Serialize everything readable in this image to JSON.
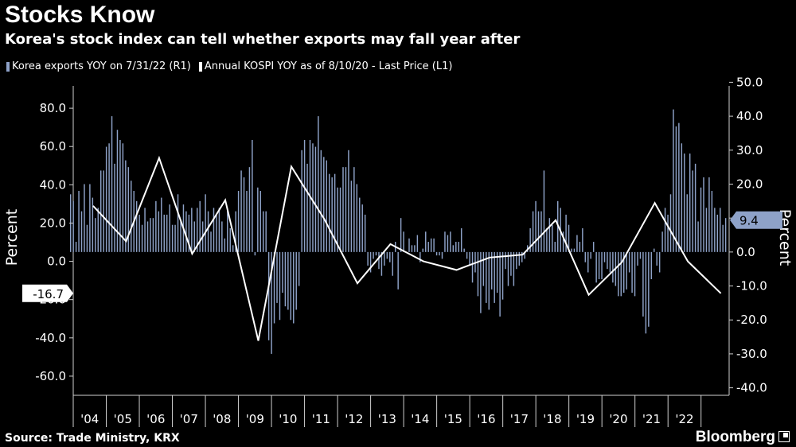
{
  "header": {
    "title": "Stocks Know",
    "subtitle": "Korea's stock index can tell whether exports may fall year after"
  },
  "legend": [
    {
      "label": "Korea exports YOY on 7/31/22 (R1)",
      "color": "#8ea2c8"
    },
    {
      "label": "Annual KOSPI YOY as of 8/10/20 - Last Price (L1)",
      "color": "#ffffff"
    }
  ],
  "footer": {
    "source": "Source: Trade Ministry, KRX",
    "brand": "Bloomberg"
  },
  "chart_data": {
    "type": "bar+line",
    "colors": {
      "bars": "#8ea2c8",
      "line": "#ffffff",
      "background": "#000000",
      "axis": "#cfcfcf"
    },
    "left_axis": {
      "label": "Percent",
      "range": [
        -70,
        95
      ],
      "ticks": [
        -60,
        -40,
        -20,
        0,
        20,
        40,
        60,
        80
      ],
      "tick_labels": [
        "-60.0",
        "-40.0",
        "-20.0",
        "0.0",
        "20.0",
        "40.0",
        "60.0",
        "80.0"
      ]
    },
    "right_axis": {
      "label": "Percent",
      "range": [
        -42.2,
        50.8
      ],
      "ticks": [
        -40,
        -30,
        -20,
        -10,
        0,
        10,
        20,
        30,
        40,
        50
      ],
      "tick_labels": [
        "-40.0",
        "-30.0",
        "-20.0",
        "-10.0",
        "0.0",
        "10.0",
        "20.0",
        "30.0",
        "40.0",
        "50.0"
      ]
    },
    "x_axis": {
      "categories": [
        "'04",
        "'05",
        "'06",
        "'07",
        "'08",
        "'09",
        "'10",
        "'11",
        "'12",
        "'13",
        "'14",
        "'15",
        "'16",
        "'17",
        "'18",
        "'19",
        "'20",
        "'21",
        "'22"
      ]
    },
    "value_labels": {
      "left_last": "-16.7",
      "right_last": "9.4"
    },
    "kospi_line": {
      "name": "Annual KOSPI YOY as of 8/10/20 - Last Price (L1)",
      "x": [
        2003.6,
        2004.6,
        2005.6,
        2006.6,
        2007.6,
        2008.6,
        2009.6,
        2010.6,
        2011.6,
        2012.6,
        2013.6,
        2014.6,
        2015.6,
        2016.6,
        2017.6,
        2018.6,
        2019.6,
        2020.6,
        2021.6,
        2022.6
      ],
      "y": [
        29,
        10.5,
        54,
        4,
        32,
        -41.5,
        49.5,
        22,
        -11.5,
        9,
        0,
        -4.5,
        2,
        3.5,
        21.5,
        -17.5,
        -0.5,
        30.5,
        0,
        -16.7
      ]
    },
    "exports_bars": {
      "name": "Korea exports YOY on 7/31/22 (R1)",
      "x_start": 2002.92,
      "step": 0.0833,
      "values": [
        17,
        15,
        3,
        18,
        12,
        20,
        8,
        20,
        16,
        10,
        13,
        24,
        24,
        31,
        32,
        40,
        26,
        36,
        33,
        32,
        27,
        25,
        21,
        18,
        15,
        11,
        8,
        13,
        9,
        10,
        10,
        15,
        12,
        16,
        11,
        11,
        14,
        8,
        8,
        17,
        9,
        14,
        12,
        11,
        13,
        9,
        13,
        15,
        9,
        17,
        12,
        6,
        13,
        11,
        13,
        9,
        4,
        13,
        7,
        2,
        12,
        18,
        24,
        22,
        18,
        25,
        33,
        -1,
        19,
        18,
        12,
        12,
        -26,
        -30,
        -21,
        -15,
        -20,
        -12,
        -16,
        -17,
        -20,
        -21,
        -17,
        -10,
        30,
        33,
        26,
        33,
        32,
        31,
        40,
        30,
        28,
        27,
        23,
        22,
        23,
        19,
        19,
        25,
        25,
        30,
        21,
        25,
        20,
        16,
        14,
        11,
        -4,
        -6,
        -2,
        -1,
        -5,
        -7,
        -4,
        -2,
        -3,
        -7,
        3,
        -11,
        10,
        6,
        0,
        4,
        2,
        2,
        5,
        -3,
        1,
        6,
        3,
        4,
        4,
        -1,
        -1,
        -2,
        6,
        5,
        6,
        2,
        3,
        3,
        7,
        1,
        -2,
        -4,
        -9,
        -6,
        -13,
        -18,
        -10,
        -15,
        -17,
        -11,
        -15,
        -12,
        -19,
        -14,
        -5,
        -10,
        -7,
        -10,
        -5,
        -4,
        -3,
        -2,
        2,
        7,
        12,
        15,
        12,
        12,
        24,
        7,
        10,
        8,
        3,
        15,
        13,
        6,
        11,
        8,
        1,
        1,
        5,
        3,
        7,
        -3,
        -6,
        -2,
        3,
        -9,
        -8,
        -8,
        -3,
        -5,
        -6,
        -9,
        -10,
        -13,
        -13,
        -12,
        -11,
        -6,
        -12,
        -13,
        -4,
        -2,
        -19,
        -24,
        -22,
        -8,
        1,
        -4,
        -6,
        6,
        13,
        11,
        17,
        42,
        37,
        38,
        32,
        29,
        17,
        29,
        24,
        26,
        9,
        19,
        22,
        13,
        22,
        18,
        13,
        11,
        13,
        8,
        10
      ],
      "last_value": 9.4
    }
  }
}
